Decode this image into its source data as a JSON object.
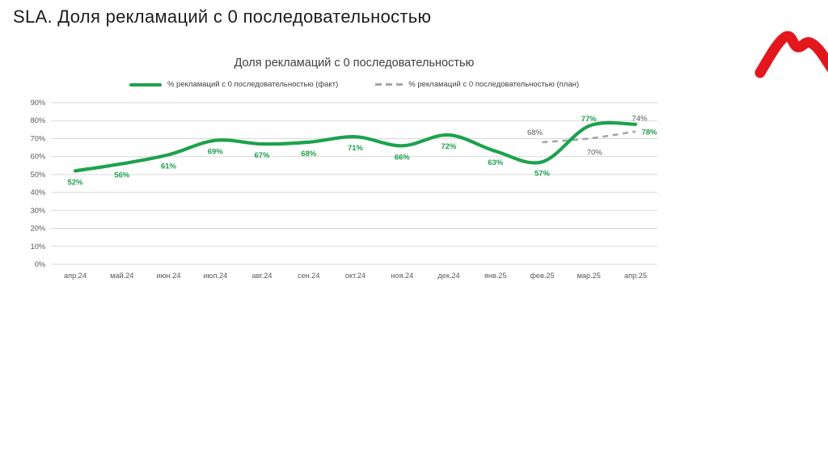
{
  "slide": {
    "title": "SLA. Доля рекламаций с 0 последовательностью"
  },
  "logo": {
    "description": "red M swoosh brand mark",
    "color": "#E2171E"
  },
  "chart_data": {
    "type": "line",
    "title": "Доля рекламаций с 0 последовательностью",
    "categories": [
      "апр.24",
      "май.24",
      "июн.24",
      "июл.24",
      "авг.24",
      "сен.24",
      "окт.24",
      "ноя.24",
      "дек.24",
      "янв.25",
      "фев.25",
      "мар.25",
      "апр.25"
    ],
    "series": [
      {
        "name": "% рекламаций с 0 последовательностью (факт)",
        "style": "solid",
        "color": "#1CA24D",
        "label_color": "#1CA24D",
        "values": [
          52,
          56,
          61,
          69,
          67,
          68,
          71,
          66,
          72,
          63,
          57,
          77,
          78
        ]
      },
      {
        "name": "% рекламаций с 0 последовательностью (план)",
        "style": "dashed",
        "color": "#A6A6A6",
        "label_color": "#595959",
        "values": [
          null,
          null,
          null,
          null,
          null,
          null,
          null,
          null,
          null,
          null,
          68,
          70,
          74
        ]
      }
    ],
    "xlabel": "",
    "ylabel": "",
    "ylim": [
      0,
      90
    ],
    "yticks": [
      "0%",
      "10%",
      "20%",
      "30%",
      "40%",
      "50%",
      "60%",
      "70%",
      "80%",
      "90%"
    ],
    "data_label_format": "percent",
    "grid": true,
    "grid_color": "#D9D9D9",
    "axis_text_color": "#595959",
    "legend_position": "top"
  }
}
